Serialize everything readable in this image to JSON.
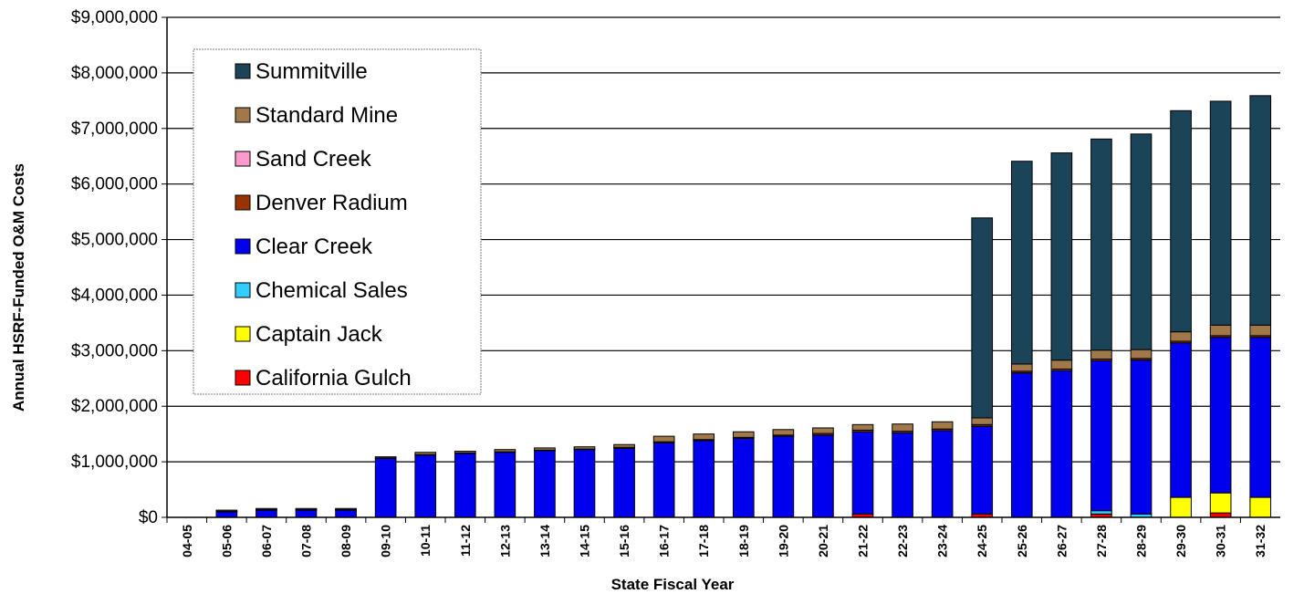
{
  "chart_data": {
    "type": "bar",
    "stacked": true,
    "title": "",
    "xlabel": "State Fiscal Year",
    "ylabel": "Annual HSRF-Funded O&M Costs",
    "ylim": [
      0,
      9000000
    ],
    "y_ticks": [
      0,
      1000000,
      2000000,
      3000000,
      4000000,
      5000000,
      6000000,
      7000000,
      8000000,
      9000000
    ],
    "y_tick_labels": [
      "$0",
      "$1,000,000",
      "$2,000,000",
      "$3,000,000",
      "$4,000,000",
      "$5,000,000",
      "$6,000,000",
      "$7,000,000",
      "$8,000,000",
      "$9,000,000"
    ],
    "grid": true,
    "legend_position": "top-left",
    "categories": [
      "04-05",
      "05-06",
      "06-07",
      "07-08",
      "08-09",
      "09-10",
      "10-11",
      "11-12",
      "12-13",
      "13-14",
      "14-15",
      "15-16",
      "16-17",
      "17-18",
      "18-19",
      "19-20",
      "20-21",
      "21-22",
      "22-23",
      "23-24",
      "24-25",
      "25-26",
      "26-27",
      "27-28",
      "28-29",
      "29-30",
      "30-31",
      "31-32"
    ],
    "series": [
      {
        "name": "California Gulch",
        "color": "#ff0000",
        "values": [
          0,
          0,
          0,
          0,
          0,
          0,
          0,
          0,
          0,
          0,
          0,
          0,
          0,
          0,
          0,
          0,
          0,
          60000,
          0,
          0,
          60000,
          0,
          0,
          60000,
          0,
          0,
          80000,
          0
        ]
      },
      {
        "name": "Captain Jack",
        "color": "#ffff00",
        "values": [
          0,
          0,
          0,
          0,
          0,
          0,
          0,
          0,
          0,
          0,
          0,
          0,
          0,
          0,
          0,
          0,
          0,
          0,
          0,
          0,
          0,
          0,
          0,
          0,
          0,
          360000,
          360000,
          360000
        ]
      },
      {
        "name": "Chemical Sales",
        "color": "#33ccff",
        "values": [
          0,
          0,
          0,
          0,
          0,
          0,
          0,
          0,
          0,
          0,
          0,
          0,
          0,
          0,
          0,
          0,
          0,
          0,
          0,
          0,
          0,
          0,
          0,
          60000,
          60000,
          0,
          0,
          0
        ]
      },
      {
        "name": "Clear Creek",
        "color": "#0000ee",
        "values": [
          0,
          100000,
          130000,
          130000,
          130000,
          1060000,
          1120000,
          1150000,
          1170000,
          1200000,
          1220000,
          1240000,
          1340000,
          1380000,
          1420000,
          1460000,
          1480000,
          1480000,
          1520000,
          1560000,
          1580000,
          2600000,
          2640000,
          2700000,
          2770000,
          2780000,
          2800000,
          2880000
        ]
      },
      {
        "name": "Denver Radium",
        "color": "#993300",
        "values": [
          0,
          10000,
          10000,
          10000,
          10000,
          10000,
          10000,
          10000,
          10000,
          10000,
          10000,
          20000,
          20000,
          20000,
          20000,
          20000,
          30000,
          30000,
          30000,
          30000,
          30000,
          30000,
          30000,
          30000,
          30000,
          30000,
          30000,
          30000
        ]
      },
      {
        "name": "Sand Creek",
        "color": "#ff99cc",
        "values": [
          0,
          0,
          0,
          0,
          0,
          0,
          0,
          0,
          0,
          0,
          0,
          0,
          0,
          0,
          0,
          0,
          0,
          0,
          0,
          0,
          0,
          0,
          0,
          0,
          0,
          0,
          0,
          0
        ]
      },
      {
        "name": "Standard Mine",
        "color": "#a0784a",
        "values": [
          0,
          20000,
          20000,
          20000,
          20000,
          20000,
          40000,
          30000,
          40000,
          40000,
          40000,
          50000,
          100000,
          100000,
          100000,
          100000,
          100000,
          100000,
          130000,
          130000,
          120000,
          130000,
          160000,
          160000,
          160000,
          170000,
          190000,
          190000
        ]
      },
      {
        "name": "Summitville",
        "color": "#1b4459",
        "values": [
          0,
          0,
          0,
          0,
          0,
          0,
          0,
          0,
          0,
          0,
          0,
          0,
          0,
          0,
          0,
          0,
          0,
          0,
          0,
          0,
          3600000,
          3650000,
          3730000,
          3800000,
          3880000,
          3980000,
          4030000,
          4130000
        ]
      }
    ],
    "legend_order": [
      "Summitville",
      "Standard Mine",
      "Sand Creek",
      "Denver Radium",
      "Clear Creek",
      "Chemical Sales",
      "Captain Jack",
      "California Gulch"
    ]
  }
}
